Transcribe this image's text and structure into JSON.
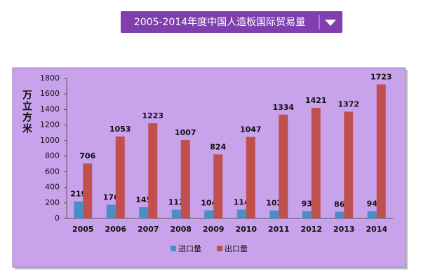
{
  "chart_data": {
    "type": "bar",
    "title": "2005-2014年度中国人造板国际贸易量",
    "y_label": "万立方米",
    "categories": [
      "2005",
      "2006",
      "2007",
      "2008",
      "2009",
      "2010",
      "2011",
      "2012",
      "2013",
      "2014"
    ],
    "series": [
      {
        "name": "进口量",
        "color": "#4a8ec8",
        "values": [
          219,
          176,
          145,
          112,
          104,
          114,
          102,
          93,
          86,
          94
        ]
      },
      {
        "name": "出口量",
        "color": "#c0504d",
        "values": [
          706,
          1053,
          1223,
          1007,
          824,
          1047,
          1334,
          1421,
          1372,
          1723
        ]
      }
    ],
    "ylim": [
      0,
      1800
    ],
    "yticks": [
      0,
      200,
      400,
      600,
      800,
      1000,
      1200,
      1400,
      1600,
      1800
    ],
    "grid": false,
    "legend": "bottom",
    "data_labels": true
  }
}
